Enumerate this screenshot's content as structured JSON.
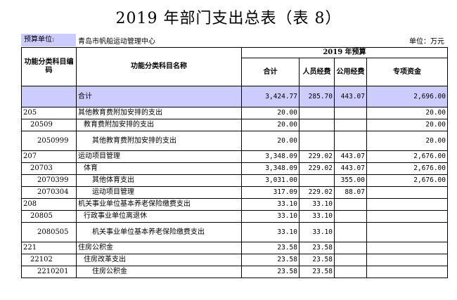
{
  "title": "2019 年部门支出总表（表 8）",
  "unit_label": "预算单位:",
  "unit_name": "青岛市帆船运动管理中心",
  "unit_right": "单位：万元",
  "headers": {
    "code": "功能分类科目编码",
    "name": "功能分类科目名称",
    "budget_group": "2019 年预算",
    "total": "合计",
    "personnel": "人员经费",
    "public": "公用经费",
    "special": "专项资金"
  },
  "total_row": {
    "code": "",
    "name": "合计",
    "total": "3,424.77",
    "personnel": "285.70",
    "public": "443.07",
    "special": "2,696.00"
  },
  "rows": [
    {
      "code": "205",
      "level": 1,
      "name": "其他教育费附加安排的支出",
      "total": "20.00",
      "personnel": "",
      "public": "",
      "special": "20.00"
    },
    {
      "code": "20509",
      "level": 2,
      "name": "教育费附加安排的支出",
      "total": "20.00",
      "personnel": "",
      "public": "",
      "special": "20.00"
    },
    {
      "code": "2050999",
      "level": 3,
      "name": "其他教育费附加安排的支出",
      "total": "20.00",
      "personnel": "",
      "public": "",
      "special": "20.00",
      "tall": true
    },
    {
      "code": "207",
      "level": 1,
      "name": "运动项目管理",
      "total": "3,348.09",
      "personnel": "229.02",
      "public": "443.07",
      "special": "2,676.00"
    },
    {
      "code": "20703",
      "level": 2,
      "name": "体育",
      "total": "3,348.09",
      "personnel": "229.02",
      "public": "443.07",
      "special": "2,676.00"
    },
    {
      "code": "2070399",
      "level": 3,
      "name": "其他体育支出",
      "total": "3,031.00",
      "personnel": "",
      "public": "355.00",
      "special": "2,676.00"
    },
    {
      "code": "2070304",
      "level": 3,
      "name": "运动项目管理",
      "total": "317.09",
      "personnel": "229.02",
      "public": "88.07",
      "special": ""
    },
    {
      "code": "208",
      "level": 1,
      "name": "机关事业单位基本养老保险缴费支出",
      "total": "33.10",
      "personnel": "33.10",
      "public": "",
      "special": ""
    },
    {
      "code": "20805",
      "level": 2,
      "name": "行政事业单位离退休",
      "total": "33.10",
      "personnel": "33.10",
      "public": "",
      "special": ""
    },
    {
      "code": "2080505",
      "level": 3,
      "name": "机关事业单位基本养老保险缴费支出",
      "total": "33.10",
      "personnel": "33.10",
      "public": "",
      "special": "",
      "tall": true
    },
    {
      "code": "221",
      "level": 1,
      "name": "住房公积金",
      "total": "23.58",
      "personnel": "23.58",
      "public": "",
      "special": ""
    },
    {
      "code": "22102",
      "level": 2,
      "name": "住房改革支出",
      "total": "23.58",
      "personnel": "23.58",
      "public": "",
      "special": ""
    },
    {
      "code": "2210201",
      "level": 3,
      "name": "住房公积金",
      "total": "23.58",
      "personnel": "23.58",
      "public": "",
      "special": ""
    }
  ]
}
